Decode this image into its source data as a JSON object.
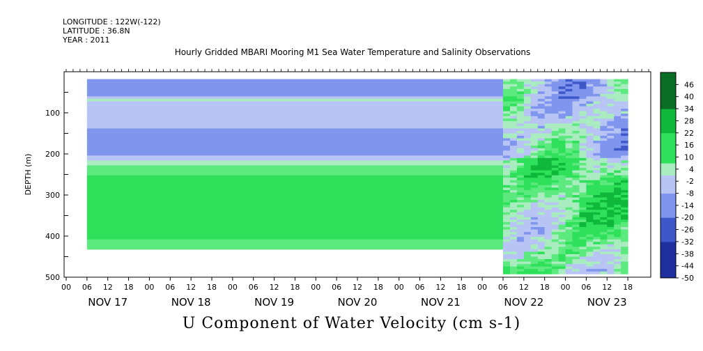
{
  "header": {
    "longitude": "LONGITUDE : 122W(-122)",
    "latitude": "LATITUDE : 36.8N",
    "year": "YEAR : 2011"
  },
  "title": "Hourly Gridded MBARI Mooring M1 Sea Water Temperature and Salinity Observations",
  "footer": "U Component of Water Velocity (cm s-1)",
  "colors": {
    "neg_deep": "#3f58c9",
    "neg_mid": "#7f95ee",
    "neg_light": "#b8c5f4",
    "zero": "#a8ecc0",
    "pos_light": "#5cea7e",
    "pos_mid": "#2ee05a",
    "pos_deep": "#0fb83a"
  },
  "chart_data": {
    "type": "heatmap",
    "xlabel": "",
    "ylabel": "DEPTH (m)",
    "ylim": [
      500,
      0
    ],
    "y_ticks": [
      "100",
      "200",
      "300",
      "400",
      "500"
    ],
    "x_hour_ticks": [
      "00",
      "06",
      "12",
      "18",
      "00",
      "06",
      "12",
      "18",
      "00",
      "06",
      "12",
      "18",
      "00",
      "06",
      "12",
      "18",
      "00",
      "06",
      "12",
      "18",
      "00",
      "06",
      "12",
      "18",
      "00",
      "06",
      "12",
      "18"
    ],
    "x_dates": [
      "NOV 17",
      "NOV 18",
      "NOV 19",
      "NOV 20",
      "NOV 21",
      "NOV 22",
      "NOV 23"
    ],
    "colorbar_levels": [
      "46",
      "40",
      "34",
      "28",
      "22",
      "16",
      "10",
      "4",
      "-2",
      "-8",
      "-14",
      "-20",
      "-26",
      "-32",
      "-38",
      "-44",
      "-50"
    ],
    "colorbar_range": [
      -50,
      52
    ],
    "data_start_hour": 6,
    "transition_hour": 126,
    "data_end_hour": 162,
    "depth_first_m": 18,
    "depth_last_m": 430,
    "depth_last_after_transition_m": 490,
    "depth_profile": [
      {
        "depth": 20,
        "value": -20
      },
      {
        "depth": 40,
        "value": -18
      },
      {
        "depth": 60,
        "value": -16
      },
      {
        "depth": 70,
        "value": 6
      },
      {
        "depth": 80,
        "value": -14
      },
      {
        "depth": 100,
        "value": -12
      },
      {
        "depth": 120,
        "value": -10
      },
      {
        "depth": 140,
        "value": -14
      },
      {
        "depth": 160,
        "value": -20
      },
      {
        "depth": 180,
        "value": -22
      },
      {
        "depth": 200,
        "value": -20
      },
      {
        "depth": 215,
        "value": -6
      },
      {
        "depth": 230,
        "value": 6
      },
      {
        "depth": 250,
        "value": 10
      },
      {
        "depth": 270,
        "value": 12
      },
      {
        "depth": 290,
        "value": 14
      },
      {
        "depth": 310,
        "value": 12
      },
      {
        "depth": 330,
        "value": 14
      },
      {
        "depth": 350,
        "value": 16
      },
      {
        "depth": 370,
        "value": 14
      },
      {
        "depth": 390,
        "value": 12
      },
      {
        "depth": 410,
        "value": 10
      },
      {
        "depth": 430,
        "value": 8
      }
    ]
  }
}
